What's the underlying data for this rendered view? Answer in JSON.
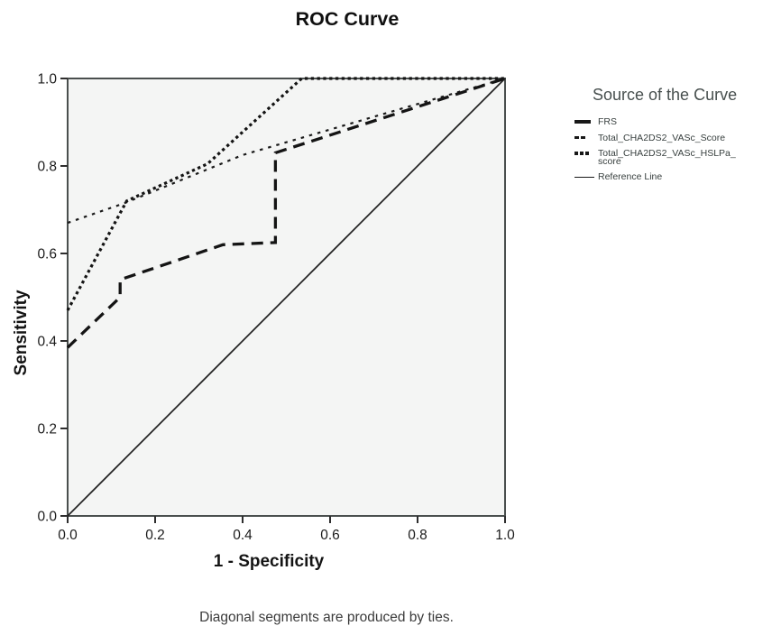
{
  "title": "ROC Curve",
  "axes": {
    "xlabel": "1 - Specificity",
    "ylabel": "Sensitivity",
    "x_ticks": [
      "0.0",
      "0.2",
      "0.4",
      "0.6",
      "0.8",
      "1.0"
    ],
    "y_ticks": [
      "0.0",
      "0.2",
      "0.4",
      "0.6",
      "0.8",
      "1.0"
    ]
  },
  "footnote": "Diagonal segments are produced by ties.",
  "legend": {
    "title": "Source of the Curve",
    "items": [
      {
        "label": "FRS"
      },
      {
        "label": "Total_CHA2DS2_VASc_Score"
      },
      {
        "label": "Total_CHA2DS2_VASc_HSLPa_",
        "label2": "score"
      },
      {
        "label": "Reference Line"
      }
    ]
  },
  "chart_data": {
    "type": "line",
    "title": "ROC Curve",
    "xlabel": "1 - Specificity",
    "ylabel": "Sensitivity",
    "xlim": [
      0,
      1
    ],
    "ylim": [
      0,
      1
    ],
    "grid": false,
    "legend_position": "right",
    "plot_bg": "#f4f5f4",
    "frame_color": "#4a4f4e",
    "tick_color": "#2e2e2e",
    "series": [
      {
        "name": "Reference Line",
        "color": "#222222",
        "width": 1.7,
        "dash": null,
        "points": [
          [
            0,
            0
          ],
          [
            1,
            1
          ]
        ]
      },
      {
        "name": "Total_CHA2DS2_VASc_Score",
        "color": "#1a1a1a",
        "width": 2.2,
        "dash": "3.5 6",
        "points": [
          [
            0,
            0.67
          ],
          [
            0.13,
            0.715
          ],
          [
            0.4,
            0.825
          ],
          [
            1,
            1
          ]
        ]
      },
      {
        "name": "Total_CHA2DS2_VASc_HSLPa_score",
        "color": "#141414",
        "width": 3.2,
        "dash": "3.3 3.5",
        "points": [
          [
            0,
            0.47
          ],
          [
            0.135,
            0.72
          ],
          [
            0.32,
            0.805
          ],
          [
            0.535,
            1
          ],
          [
            1,
            1
          ]
        ]
      },
      {
        "name": "FRS",
        "color": "#141414",
        "width": 3.3,
        "dash": "13 8",
        "points": [
          [
            0,
            0.385
          ],
          [
            0.12,
            0.5
          ],
          [
            0.12,
            0.54
          ],
          [
            0.355,
            0.62
          ],
          [
            0.475,
            0.625
          ],
          [
            0.475,
            0.83
          ],
          [
            1,
            1
          ]
        ]
      }
    ]
  }
}
